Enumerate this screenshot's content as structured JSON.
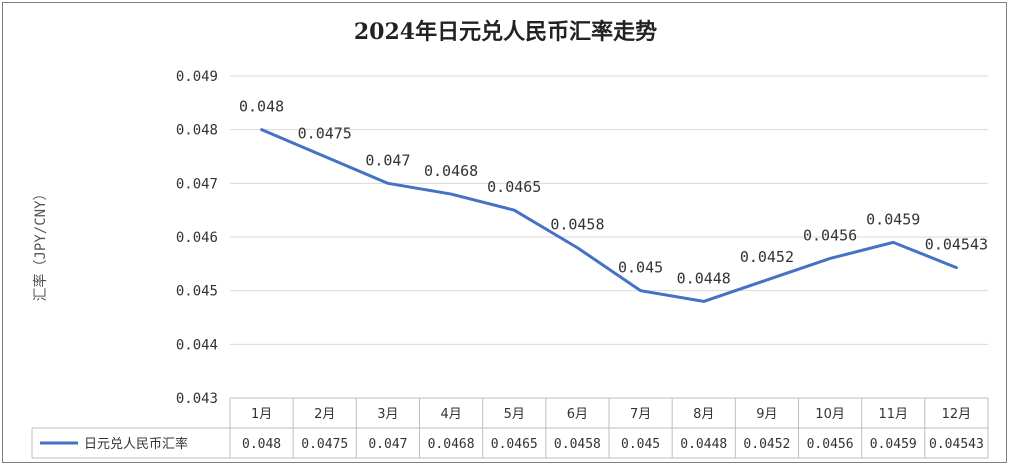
{
  "chart_data": {
    "type": "line",
    "title": "2024年日元兑人民币汇率走势",
    "xlabel": "",
    "ylabel": "汇率（JPY/CNY）",
    "categories": [
      "1月",
      "2月",
      "3月",
      "4月",
      "5月",
      "6月",
      "7月",
      "8月",
      "9月",
      "10月",
      "11月",
      "12月"
    ],
    "series": [
      {
        "name": "日元兑人民币汇率",
        "values": [
          0.048,
          0.0475,
          0.047,
          0.0468,
          0.0465,
          0.0458,
          0.045,
          0.0448,
          0.0452,
          0.0456,
          0.0459,
          0.04543
        ],
        "labels": [
          "0.048",
          "0.0475",
          "0.047",
          "0.0468",
          "0.0465",
          "0.0458",
          "0.045",
          "0.0448",
          "0.0452",
          "0.0456",
          "0.0459",
          "0.04543"
        ]
      }
    ],
    "yticks": [
      "0.043",
      "0.044",
      "0.045",
      "0.046",
      "0.047",
      "0.048",
      "0.049"
    ],
    "ylim": [
      0.043,
      0.049
    ],
    "grid": true,
    "legend": "data-table",
    "colors": {
      "line": "#4472c4",
      "grid": "#d9d9d9",
      "table": "#bfbfbf",
      "text": "#333333"
    }
  }
}
